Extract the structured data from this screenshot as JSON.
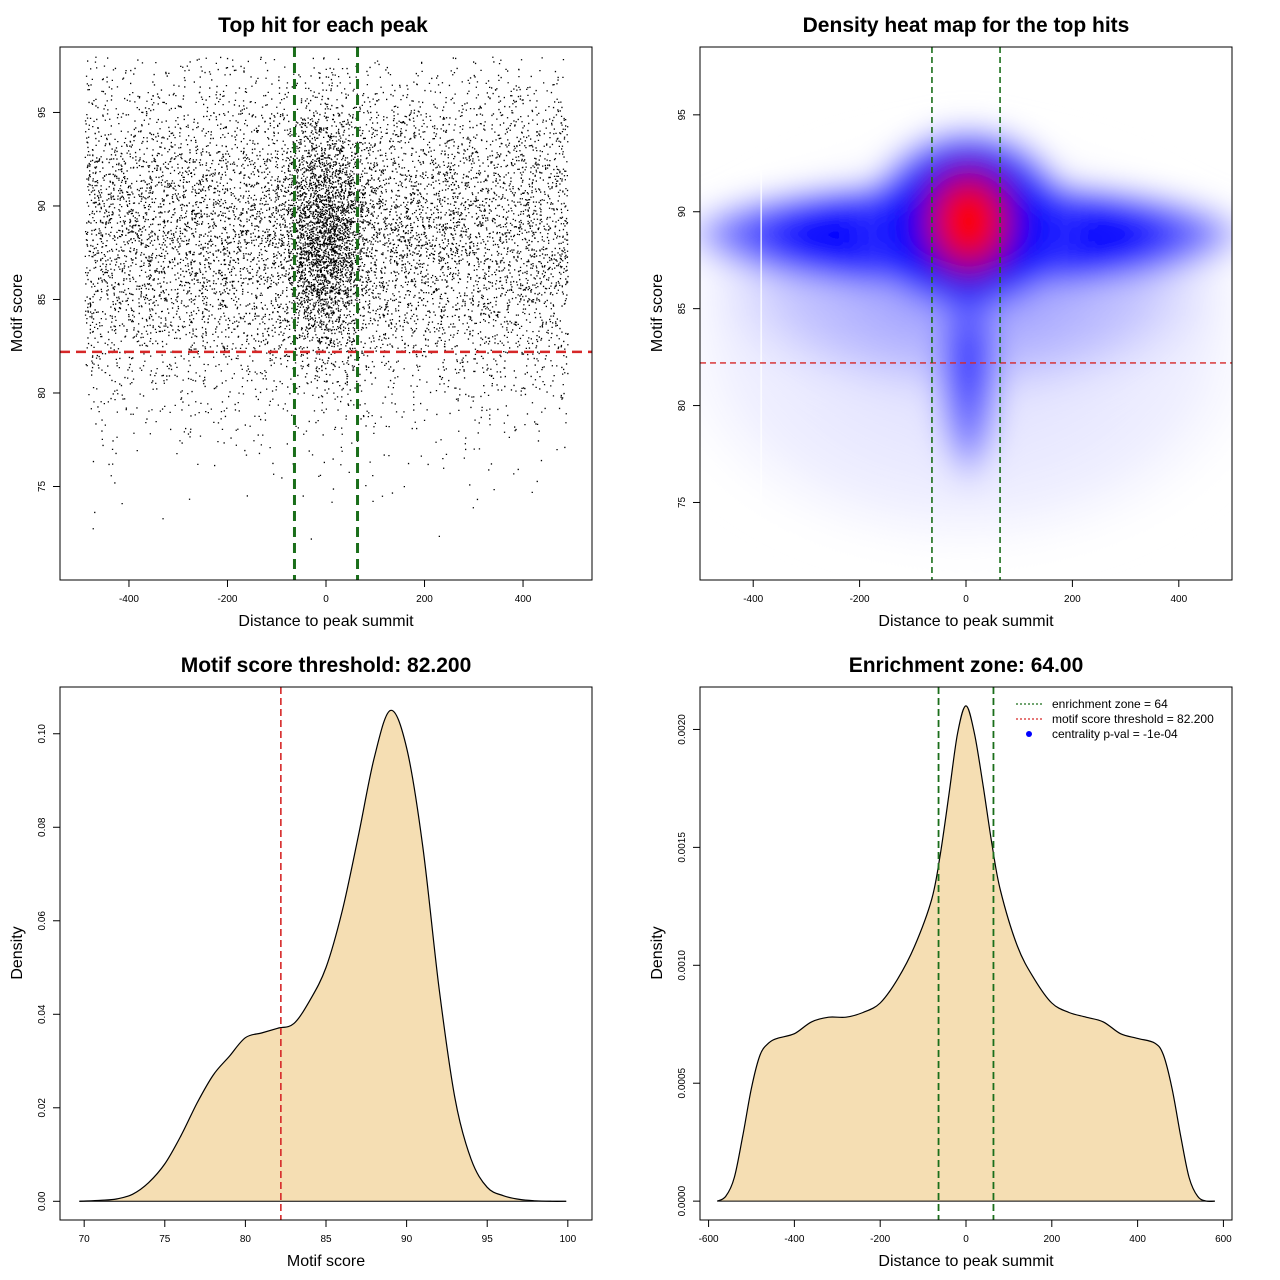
{
  "colors": {
    "scatter_point": "#000000",
    "threshold_line": "#d62728",
    "zone_line": "#1a6e1a",
    "density_fill": "#f5deb3",
    "heat_low": "#ffffff",
    "heat_mid": "#0000ff",
    "heat_high": "#ff0000",
    "legend_point": "#0000ff"
  },
  "chart_data": [
    {
      "id": "scatter",
      "type": "scatter",
      "title": "Top hit for each peak",
      "xlabel": "Distance to peak summit",
      "ylabel": "Motif score",
      "xlim": [
        -540,
        540
      ],
      "ylim": [
        70,
        98.5
      ],
      "xticks": [
        -400,
        -200,
        0,
        200,
        400
      ],
      "yticks": [
        75,
        80,
        85,
        90,
        95
      ],
      "x_range_of_points": [
        -490,
        490
      ],
      "y_range_of_points": [
        71,
        98
      ],
      "point_count_approx": 20000,
      "y_center": 88.5,
      "x_center": 0,
      "hline": 82.2,
      "vlines": [
        -64,
        64
      ],
      "grid": false
    },
    {
      "id": "heatmap",
      "type": "heatmap",
      "title": "Density heat map for the top hits",
      "xlabel": "Distance to peak summit",
      "ylabel": "Motif score",
      "xlim": [
        -500,
        500
      ],
      "ylim": [
        71,
        98.5
      ],
      "xticks": [
        -400,
        -200,
        0,
        200,
        400
      ],
      "yticks": [
        75,
        80,
        85,
        90,
        95
      ],
      "peak": {
        "x": 5,
        "y": 89.5
      },
      "hline": 82.2,
      "vlines": [
        -64,
        64
      ],
      "grid": false
    },
    {
      "id": "score-density",
      "type": "area",
      "title": "Motif score threshold: 82.200",
      "xlabel": "Motif score",
      "ylabel": "Density",
      "xlim": [
        68.5,
        101.5
      ],
      "ylim": [
        -0.004,
        0.11
      ],
      "xticks": [
        70,
        75,
        80,
        85,
        90,
        95,
        100
      ],
      "yticks": [
        0.0,
        0.02,
        0.04,
        0.06,
        0.08,
        0.1
      ],
      "ytick_labels": [
        "0.00",
        "0.02",
        "0.04",
        "0.06",
        "0.08",
        "0.10"
      ],
      "x": [
        69.7,
        71,
        72,
        73,
        74,
        75,
        76,
        77,
        78,
        79,
        80,
        81,
        82,
        83,
        84,
        85,
        86,
        87,
        88,
        89,
        90,
        91,
        92,
        93,
        94,
        95,
        96,
        97,
        98,
        99,
        99.9
      ],
      "y": [
        0.0,
        0.0002,
        0.0005,
        0.0015,
        0.004,
        0.008,
        0.014,
        0.021,
        0.027,
        0.031,
        0.035,
        0.036,
        0.037,
        0.038,
        0.043,
        0.05,
        0.062,
        0.078,
        0.095,
        0.105,
        0.097,
        0.076,
        0.046,
        0.022,
        0.009,
        0.003,
        0.0012,
        0.0004,
        0.0001,
        0.0,
        0.0
      ],
      "vline": 82.2,
      "grid": false
    },
    {
      "id": "distance-density",
      "type": "area",
      "title": "Enrichment zone: 64.00",
      "xlabel": "Distance to peak summit",
      "ylabel": "Density",
      "xlim": [
        -620,
        620
      ],
      "ylim": [
        -8e-05,
        0.00218
      ],
      "xticks": [
        -600,
        -400,
        -200,
        0,
        200,
        400,
        600
      ],
      "yticks": [
        0.0,
        0.0005,
        0.001,
        0.0015,
        0.002
      ],
      "ytick_labels": [
        "0.0000",
        "0.0005",
        "0.0010",
        "0.0015",
        "0.0020"
      ],
      "x": [
        -580,
        -560,
        -540,
        -520,
        -500,
        -480,
        -460,
        -440,
        -400,
        -360,
        -320,
        -280,
        -240,
        -200,
        -160,
        -120,
        -80,
        -60,
        -40,
        -20,
        0,
        20,
        40,
        60,
        80,
        120,
        160,
        200,
        240,
        280,
        320,
        360,
        400,
        440,
        460,
        480,
        500,
        520,
        540,
        560,
        580
      ],
      "y": [
        0.0,
        2e-05,
        0.0001,
        0.00028,
        0.00048,
        0.00062,
        0.00067,
        0.00069,
        0.00071,
        0.00076,
        0.00078,
        0.00078,
        0.0008,
        0.00084,
        0.00094,
        0.00108,
        0.00128,
        0.00147,
        0.00172,
        0.00198,
        0.0021,
        0.00198,
        0.00176,
        0.00152,
        0.00132,
        0.00108,
        0.00094,
        0.00084,
        0.0008,
        0.00078,
        0.00076,
        0.00071,
        0.00069,
        0.00067,
        0.00062,
        0.00048,
        0.00028,
        0.0001,
        2e-05,
        0.0,
        0.0
      ],
      "vlines": [
        -64,
        64
      ],
      "legend": {
        "position": "top-right",
        "entries": [
          {
            "label": "enrichment zone = 64",
            "style": "dotted-line",
            "color": "#1a6e1a"
          },
          {
            "label": "motif score threshold = 82.200",
            "style": "dotted-line",
            "color": "#d62728"
          },
          {
            "label": "centrality p-val = -1e-04",
            "style": "point",
            "color": "#0000ff"
          }
        ]
      },
      "grid": false
    }
  ]
}
